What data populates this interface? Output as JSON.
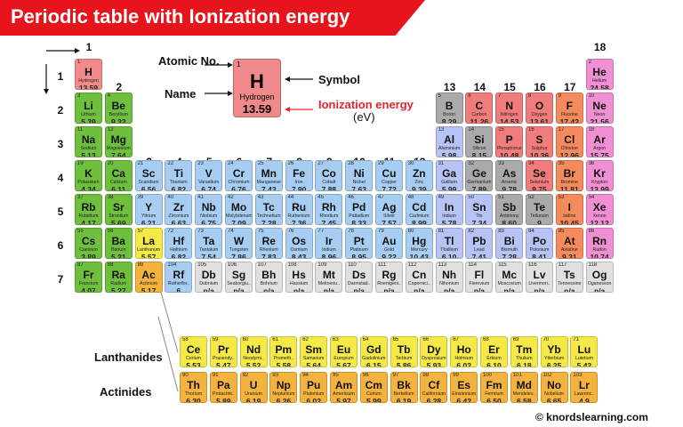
{
  "title": "Periodic table with Ionization energy",
  "footer": "© knordslearning.com",
  "legend": {
    "atomic_no_label": "Atomic No.",
    "name_label": "Name",
    "symbol_label": "Symbol",
    "ie_label": "Ionization energy",
    "ie_unit": "(eV)",
    "example": {
      "num": "1",
      "sym": "H",
      "name": "Hydrogen",
      "ie": "13.59"
    }
  },
  "groups": [
    "1",
    "2",
    "3",
    "4",
    "5",
    "6",
    "7",
    "8",
    "9",
    "10",
    "11",
    "12",
    "13",
    "14",
    "15",
    "16",
    "17",
    "18"
  ],
  "periods": [
    "1",
    "2",
    "3",
    "4",
    "5",
    "6",
    "7"
  ],
  "series_labels": {
    "lanthanides": "Lanthanides",
    "actinides": "Actinides"
  },
  "colors": {
    "alkali": "#6fbf3f",
    "alkaline": "#6fbf3f",
    "hydrogen": "#f08a8a",
    "transition": "#a8cdf2",
    "lanth_a": "#f5e948",
    "actin_a": "#f4b33e",
    "post": "#b7c3f5",
    "metalloid": "#aaaaaa",
    "nonmetal": "#f07c7c",
    "halogen": "#f58a5c",
    "noble": "#f08fd3",
    "unknown": "#e0e0e0"
  },
  "elements": [
    {
      "n": "1",
      "s": "H",
      "name": "Hydrogen",
      "ie": "13.59",
      "c": "hydrogen",
      "g": 1,
      "p": 1
    },
    {
      "n": "2",
      "s": "He",
      "name": "Helium",
      "ie": "24.58",
      "c": "noble",
      "g": 18,
      "p": 1
    },
    {
      "n": "3",
      "s": "Li",
      "name": "Lithium",
      "ie": "5.39",
      "c": "alkali",
      "g": 1,
      "p": 2
    },
    {
      "n": "4",
      "s": "Be",
      "name": "Beryllium",
      "ie": "9.32",
      "c": "alkaline",
      "g": 2,
      "p": 2
    },
    {
      "n": "5",
      "s": "B",
      "name": "Boron",
      "ie": "8.29",
      "c": "metalloid",
      "g": 13,
      "p": 2
    },
    {
      "n": "6",
      "s": "C",
      "name": "Carbon",
      "ie": "11.26",
      "c": "nonmetal",
      "g": 14,
      "p": 2
    },
    {
      "n": "7",
      "s": "N",
      "name": "Nitrogen",
      "ie": "14.53",
      "c": "nonmetal",
      "g": 15,
      "p": 2
    },
    {
      "n": "8",
      "s": "O",
      "name": "Oxygen",
      "ie": "13.61",
      "c": "nonmetal",
      "g": 16,
      "p": 2
    },
    {
      "n": "9",
      "s": "F",
      "name": "Fluorine",
      "ie": "17.42",
      "c": "halogen",
      "g": 17,
      "p": 2
    },
    {
      "n": "10",
      "s": "Ne",
      "name": "Neon",
      "ie": "21.56",
      "c": "noble",
      "g": 18,
      "p": 2
    },
    {
      "n": "11",
      "s": "Na",
      "name": "Sodium",
      "ie": "5.13",
      "c": "alkali",
      "g": 1,
      "p": 3
    },
    {
      "n": "12",
      "s": "Mg",
      "name": "Magnesium",
      "ie": "7.64",
      "c": "alkaline",
      "g": 2,
      "p": 3
    },
    {
      "n": "13",
      "s": "Al",
      "name": "Aluminium",
      "ie": "5.98",
      "c": "post",
      "g": 13,
      "p": 3
    },
    {
      "n": "14",
      "s": "Si",
      "name": "Silicon",
      "ie": "8.15",
      "c": "metalloid",
      "g": 14,
      "p": 3
    },
    {
      "n": "15",
      "s": "P",
      "name": "Phosphorus",
      "ie": "10.48",
      "c": "nonmetal",
      "g": 15,
      "p": 3
    },
    {
      "n": "16",
      "s": "S",
      "name": "Sulphur",
      "ie": "10.36",
      "c": "nonmetal",
      "g": 16,
      "p": 3
    },
    {
      "n": "17",
      "s": "Cl",
      "name": "Chlorine",
      "ie": "12.96",
      "c": "halogen",
      "g": 17,
      "p": 3
    },
    {
      "n": "18",
      "s": "Ar",
      "name": "Argon",
      "ie": "15.75",
      "c": "noble",
      "g": 18,
      "p": 3
    },
    {
      "n": "19",
      "s": "K",
      "name": "Potassium",
      "ie": "4.34",
      "c": "alkali",
      "g": 1,
      "p": 4
    },
    {
      "n": "20",
      "s": "Ca",
      "name": "Calcium",
      "ie": "6.11",
      "c": "alkaline",
      "g": 2,
      "p": 4
    },
    {
      "n": "21",
      "s": "Sc",
      "name": "Scandium",
      "ie": "6.56",
      "c": "transition",
      "g": 3,
      "p": 4
    },
    {
      "n": "22",
      "s": "Ti",
      "name": "Titanium",
      "ie": "6.82",
      "c": "transition",
      "g": 4,
      "p": 4
    },
    {
      "n": "23",
      "s": "V",
      "name": "Vanadium",
      "ie": "6.74",
      "c": "transition",
      "g": 5,
      "p": 4
    },
    {
      "n": "24",
      "s": "Cr",
      "name": "Chromium",
      "ie": "6.76",
      "c": "transition",
      "g": 6,
      "p": 4
    },
    {
      "n": "25",
      "s": "Mn",
      "name": "Manganese",
      "ie": "7.43",
      "c": "transition",
      "g": 7,
      "p": 4
    },
    {
      "n": "26",
      "s": "Fe",
      "name": "Iron",
      "ie": "7.90",
      "c": "transition",
      "g": 8,
      "p": 4
    },
    {
      "n": "27",
      "s": "Co",
      "name": "Cobalt",
      "ie": "7.88",
      "c": "transition",
      "g": 9,
      "p": 4
    },
    {
      "n": "28",
      "s": "Ni",
      "name": "Nickel",
      "ie": "7.63",
      "c": "transition",
      "g": 10,
      "p": 4
    },
    {
      "n": "29",
      "s": "Cu",
      "name": "Copper",
      "ie": "7.72",
      "c": "transition",
      "g": 11,
      "p": 4
    },
    {
      "n": "30",
      "s": "Zn",
      "name": "Zinc",
      "ie": "9.39",
      "c": "transition",
      "g": 12,
      "p": 4
    },
    {
      "n": "31",
      "s": "Ga",
      "name": "Gallium",
      "ie": "5.99",
      "c": "post",
      "g": 13,
      "p": 4
    },
    {
      "n": "32",
      "s": "Ge",
      "name": "Germanium",
      "ie": "7.89",
      "c": "metalloid",
      "g": 14,
      "p": 4
    },
    {
      "n": "33",
      "s": "As",
      "name": "Arsenic",
      "ie": "9.78",
      "c": "metalloid",
      "g": 15,
      "p": 4
    },
    {
      "n": "34",
      "s": "Se",
      "name": "Selenium",
      "ie": "9.75",
      "c": "nonmetal",
      "g": 16,
      "p": 4
    },
    {
      "n": "35",
      "s": "Br",
      "name": "Bromine",
      "ie": "11.81",
      "c": "halogen",
      "g": 17,
      "p": 4
    },
    {
      "n": "36",
      "s": "Kr",
      "name": "Krypton",
      "ie": "13.99",
      "c": "noble",
      "g": 18,
      "p": 4
    },
    {
      "n": "37",
      "s": "Rb",
      "name": "Rubidium",
      "ie": "4.17",
      "c": "alkali",
      "g": 1,
      "p": 5
    },
    {
      "n": "38",
      "s": "Sr",
      "name": "Strontium",
      "ie": "5.69",
      "c": "alkaline",
      "g": 2,
      "p": 5
    },
    {
      "n": "39",
      "s": "Y",
      "name": "Yttrium",
      "ie": "6.21",
      "c": "transition",
      "g": 3,
      "p": 5
    },
    {
      "n": "40",
      "s": "Zr",
      "name": "Zirconium",
      "ie": "6.63",
      "c": "transition",
      "g": 4,
      "p": 5
    },
    {
      "n": "41",
      "s": "Nb",
      "name": "Niobium",
      "ie": "6.75",
      "c": "transition",
      "g": 5,
      "p": 5
    },
    {
      "n": "42",
      "s": "Mo",
      "name": "Molybdenum",
      "ie": "7.09",
      "c": "transition",
      "g": 6,
      "p": 5
    },
    {
      "n": "43",
      "s": "Tc",
      "name": "Technetium",
      "ie": "7.28",
      "c": "transition",
      "g": 7,
      "p": 5
    },
    {
      "n": "44",
      "s": "Ru",
      "name": "Ruthenium",
      "ie": "7.36",
      "c": "transition",
      "g": 8,
      "p": 5
    },
    {
      "n": "45",
      "s": "Rh",
      "name": "Rhodium",
      "ie": "7.45",
      "c": "transition",
      "g": 9,
      "p": 5
    },
    {
      "n": "46",
      "s": "Pd",
      "name": "Palladium",
      "ie": "8.33",
      "c": "transition",
      "g": 10,
      "p": 5
    },
    {
      "n": "47",
      "s": "Ag",
      "name": "Silver",
      "ie": "7.57",
      "c": "transition",
      "g": 11,
      "p": 5
    },
    {
      "n": "48",
      "s": "Cd",
      "name": "Cadmium",
      "ie": "8.99",
      "c": "transition",
      "g": 12,
      "p": 5
    },
    {
      "n": "49",
      "s": "In",
      "name": "Indium",
      "ie": "5.78",
      "c": "post",
      "g": 13,
      "p": 5
    },
    {
      "n": "50",
      "s": "Sn",
      "name": "Tin",
      "ie": "7.34",
      "c": "post",
      "g": 14,
      "p": 5
    },
    {
      "n": "51",
      "s": "Sb",
      "name": "Antimony",
      "ie": "8.60",
      "c": "metalloid",
      "g": 15,
      "p": 5
    },
    {
      "n": "52",
      "s": "Te",
      "name": "Tellurium",
      "ie": "9",
      "c": "metalloid",
      "g": 16,
      "p": 5
    },
    {
      "n": "53",
      "s": "I",
      "name": "Iodine",
      "ie": "10.45",
      "c": "halogen",
      "g": 17,
      "p": 5
    },
    {
      "n": "54",
      "s": "Xe",
      "name": "Xenon",
      "ie": "12.12",
      "c": "noble",
      "g": 18,
      "p": 5
    },
    {
      "n": "55",
      "s": "Cs",
      "name": "Caesium",
      "ie": "3.89",
      "c": "alkali",
      "g": 1,
      "p": 6
    },
    {
      "n": "56",
      "s": "Ba",
      "name": "Barium",
      "ie": "5.21",
      "c": "alkaline",
      "g": 2,
      "p": 6
    },
    {
      "n": "57",
      "s": "La",
      "name": "Lanthanum",
      "ie": "5.57",
      "c": "lanth_a",
      "g": 3,
      "p": 6
    },
    {
      "n": "72",
      "s": "Hf",
      "name": "Hafnium",
      "ie": "6.82",
      "c": "transition",
      "g": 4,
      "p": 6
    },
    {
      "n": "73",
      "s": "Ta",
      "name": "Tantalum",
      "ie": "7.54",
      "c": "transition",
      "g": 5,
      "p": 6
    },
    {
      "n": "74",
      "s": "W",
      "name": "Tungsten",
      "ie": "7.86",
      "c": "transition",
      "g": 6,
      "p": 6
    },
    {
      "n": "75",
      "s": "Re",
      "name": "Rhenium",
      "ie": "7.83",
      "c": "transition",
      "g": 7,
      "p": 6
    },
    {
      "n": "76",
      "s": "Os",
      "name": "Osmium",
      "ie": "8.43",
      "c": "transition",
      "g": 8,
      "p": 6
    },
    {
      "n": "77",
      "s": "Ir",
      "name": "Iridium",
      "ie": "8.96",
      "c": "transition",
      "g": 9,
      "p": 6
    },
    {
      "n": "78",
      "s": "Pt",
      "name": "Platinum",
      "ie": "8.95",
      "c": "transition",
      "g": 10,
      "p": 6
    },
    {
      "n": "79",
      "s": "Au",
      "name": "Gold",
      "ie": "9.22",
      "c": "transition",
      "g": 11,
      "p": 6
    },
    {
      "n": "80",
      "s": "Hg",
      "name": "Mercury",
      "ie": "10.43",
      "c": "transition",
      "g": 12,
      "p": 6
    },
    {
      "n": "81",
      "s": "Tl",
      "name": "Thallium",
      "ie": "6.10",
      "c": "post",
      "g": 13,
      "p": 6
    },
    {
      "n": "82",
      "s": "Pb",
      "name": "Lead",
      "ie": "7.41",
      "c": "post",
      "g": 14,
      "p": 6
    },
    {
      "n": "83",
      "s": "Bi",
      "name": "Bismuth",
      "ie": "7.28",
      "c": "post",
      "g": 15,
      "p": 6
    },
    {
      "n": "84",
      "s": "Po",
      "name": "Polonium",
      "ie": "8.41",
      "c": "post",
      "g": 16,
      "p": 6
    },
    {
      "n": "85",
      "s": "At",
      "name": "Astatine",
      "ie": "9.31",
      "c": "halogen",
      "g": 17,
      "p": 6
    },
    {
      "n": "86",
      "s": "Rn",
      "name": "Radon",
      "ie": "10.74",
      "c": "noble",
      "g": 18,
      "p": 6
    },
    {
      "n": "87",
      "s": "Fr",
      "name": "Francium",
      "ie": "4.07",
      "c": "alkali",
      "g": 1,
      "p": 7
    },
    {
      "n": "88",
      "s": "Ra",
      "name": "Radium",
      "ie": "5.27",
      "c": "alkaline",
      "g": 2,
      "p": 7
    },
    {
      "n": "89",
      "s": "Ac",
      "name": "Actinium",
      "ie": "5.17",
      "c": "actin_a",
      "g": 3,
      "p": 7
    },
    {
      "n": "104",
      "s": "Rf",
      "name": "Rutherfor..",
      "ie": "6",
      "c": "transition",
      "g": 4,
      "p": 7
    },
    {
      "n": "105",
      "s": "Db",
      "name": "Dubnium",
      "ie": "n/a",
      "c": "unknown",
      "g": 5,
      "p": 7
    },
    {
      "n": "106",
      "s": "Sg",
      "name": "Seaborgiu..",
      "ie": "n/a",
      "c": "unknown",
      "g": 6,
      "p": 7
    },
    {
      "n": "107",
      "s": "Bh",
      "name": "Bohrium",
      "ie": "n/a",
      "c": "unknown",
      "g": 7,
      "p": 7
    },
    {
      "n": "108",
      "s": "Hs",
      "name": "Hassium",
      "ie": "n/a",
      "c": "unknown",
      "g": 8,
      "p": 7
    },
    {
      "n": "109",
      "s": "Mt",
      "name": "Meitneriu..",
      "ie": "n/a",
      "c": "unknown",
      "g": 9,
      "p": 7
    },
    {
      "n": "110",
      "s": "Ds",
      "name": "Darmstad..",
      "ie": "n/a",
      "c": "unknown",
      "g": 10,
      "p": 7
    },
    {
      "n": "111",
      "s": "Rg",
      "name": "Roentgeni..",
      "ie": "n/a",
      "c": "unknown",
      "g": 11,
      "p": 7
    },
    {
      "n": "112",
      "s": "Cn",
      "name": "Copernici..",
      "ie": "n/a",
      "c": "unknown",
      "g": 12,
      "p": 7
    },
    {
      "n": "113",
      "s": "Nh",
      "name": "Nihonium",
      "ie": "n/a",
      "c": "unknown",
      "g": 13,
      "p": 7
    },
    {
      "n": "114",
      "s": "Fl",
      "name": "Flerovium",
      "ie": "n/a",
      "c": "unknown",
      "g": 14,
      "p": 7
    },
    {
      "n": "115",
      "s": "Mc",
      "name": "Moscovium",
      "ie": "n/a",
      "c": "unknown",
      "g": 15,
      "p": 7
    },
    {
      "n": "116",
      "s": "Lv",
      "name": "Livermori..",
      "ie": "n/a",
      "c": "unknown",
      "g": 16,
      "p": 7
    },
    {
      "n": "117",
      "s": "Ts",
      "name": "Tennessine",
      "ie": "n/a",
      "c": "unknown",
      "g": 17,
      "p": 7
    },
    {
      "n": "118",
      "s": "Og",
      "name": "Oganesson",
      "ie": "n/a",
      "c": "unknown",
      "g": 18,
      "p": 7
    }
  ],
  "lanthanides": [
    {
      "n": "58",
      "s": "Ce",
      "name": "Cerium",
      "ie": "5.53"
    },
    {
      "n": "59",
      "s": "Pr",
      "name": "Praseody..",
      "ie": "5.47"
    },
    {
      "n": "60",
      "s": "Nd",
      "name": "Neodymi..",
      "ie": "5.52"
    },
    {
      "n": "61",
      "s": "Pm",
      "name": "Prometh..",
      "ie": "5.58"
    },
    {
      "n": "62",
      "s": "Sm",
      "name": "Samarium",
      "ie": "5.64"
    },
    {
      "n": "63",
      "s": "Eu",
      "name": "Europium",
      "ie": "5.67"
    },
    {
      "n": "64",
      "s": "Gd",
      "name": "Gadolinium",
      "ie": "6.15"
    },
    {
      "n": "65",
      "s": "Tb",
      "name": "Terbium",
      "ie": "5.86"
    },
    {
      "n": "66",
      "s": "Dy",
      "name": "Dysprosium",
      "ie": "5.93"
    },
    {
      "n": "67",
      "s": "Ho",
      "name": "Holmium",
      "ie": "6.02"
    },
    {
      "n": "68",
      "s": "Er",
      "name": "Erbium",
      "ie": "6.10"
    },
    {
      "n": "69",
      "s": "Tm",
      "name": "Thulium",
      "ie": "6.18"
    },
    {
      "n": "70",
      "s": "Yb",
      "name": "Ytterbium",
      "ie": "6.25"
    },
    {
      "n": "71",
      "s": "Lu",
      "name": "Lutetium",
      "ie": "5.42"
    }
  ],
  "actinides": [
    {
      "n": "90",
      "s": "Th",
      "name": "Thorium",
      "ie": "6.30"
    },
    {
      "n": "91",
      "s": "Pa",
      "name": "Protactini..",
      "ie": "5.89"
    },
    {
      "n": "92",
      "s": "U",
      "name": "Uranium",
      "ie": "6.19"
    },
    {
      "n": "93",
      "s": "Np",
      "name": "Neptunium",
      "ie": "6.26"
    },
    {
      "n": "94",
      "s": "Pu",
      "name": "Plutonium",
      "ie": "6.02"
    },
    {
      "n": "95",
      "s": "Am",
      "name": "Americium",
      "ie": "5.97"
    },
    {
      "n": "96",
      "s": "Cm",
      "name": "Curium",
      "ie": "5.99"
    },
    {
      "n": "97",
      "s": "Bk",
      "name": "Berkelium",
      "ie": "6.19"
    },
    {
      "n": "98",
      "s": "Cf",
      "name": "Californium",
      "ie": "6.28"
    },
    {
      "n": "99",
      "s": "Es",
      "name": "Einsteinium",
      "ie": "6.42"
    },
    {
      "n": "100",
      "s": "Fm",
      "name": "Fermium",
      "ie": "6.50"
    },
    {
      "n": "101",
      "s": "Md",
      "name": "Mendelev..",
      "ie": "6.58"
    },
    {
      "n": "102",
      "s": "No",
      "name": "Nobelium",
      "ie": "6.65"
    },
    {
      "n": "103",
      "s": "Lr",
      "name": "Lawrenc..",
      "ie": "4.9"
    }
  ]
}
